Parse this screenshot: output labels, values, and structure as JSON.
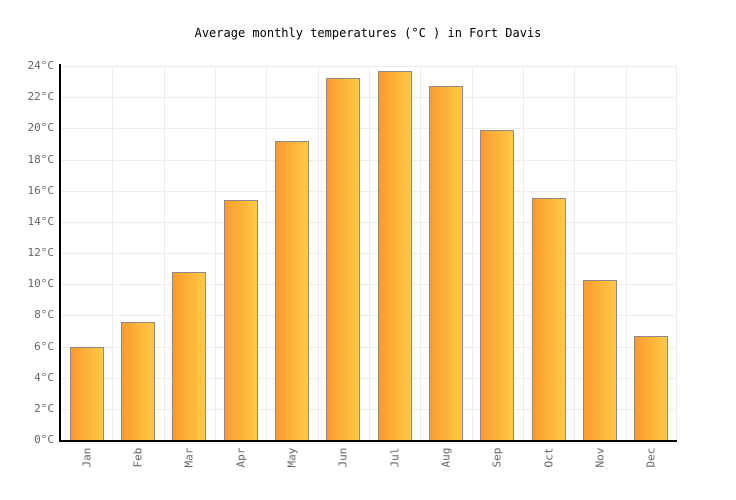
{
  "page": {
    "background": "#ffffff"
  },
  "chart_data": {
    "type": "bar",
    "title": "Average monthly temperatures (°C ) in Fort Davis",
    "categories": [
      "Jan",
      "Feb",
      "Mar",
      "Apr",
      "May",
      "Jun",
      "Jul",
      "Aug",
      "Sep",
      "Oct",
      "Nov",
      "Dec"
    ],
    "values": [
      6.0,
      7.6,
      10.8,
      15.4,
      19.2,
      23.2,
      23.7,
      22.7,
      19.9,
      15.5,
      10.3,
      6.7
    ],
    "unit": "°C",
    "xlabel": "",
    "ylabel": "",
    "ylim": [
      0,
      24
    ],
    "ytick_step": 2,
    "ytick_labels": [
      "0°C",
      "2°C",
      "4°C",
      "6°C",
      "8°C",
      "10°C",
      "12°C",
      "14°C",
      "16°C",
      "18°C",
      "20°C",
      "22°C",
      "24°C"
    ],
    "grid": true,
    "legend": false,
    "colors": {
      "bar_gradient_left": "#fa9b2e",
      "bar_gradient_right": "#ffc946",
      "bar_border": "#8a8a8a",
      "grid": "#ececec",
      "axis": "#000000",
      "tick_label": "#666666",
      "title": "#000000",
      "background": "#ffffff"
    }
  }
}
